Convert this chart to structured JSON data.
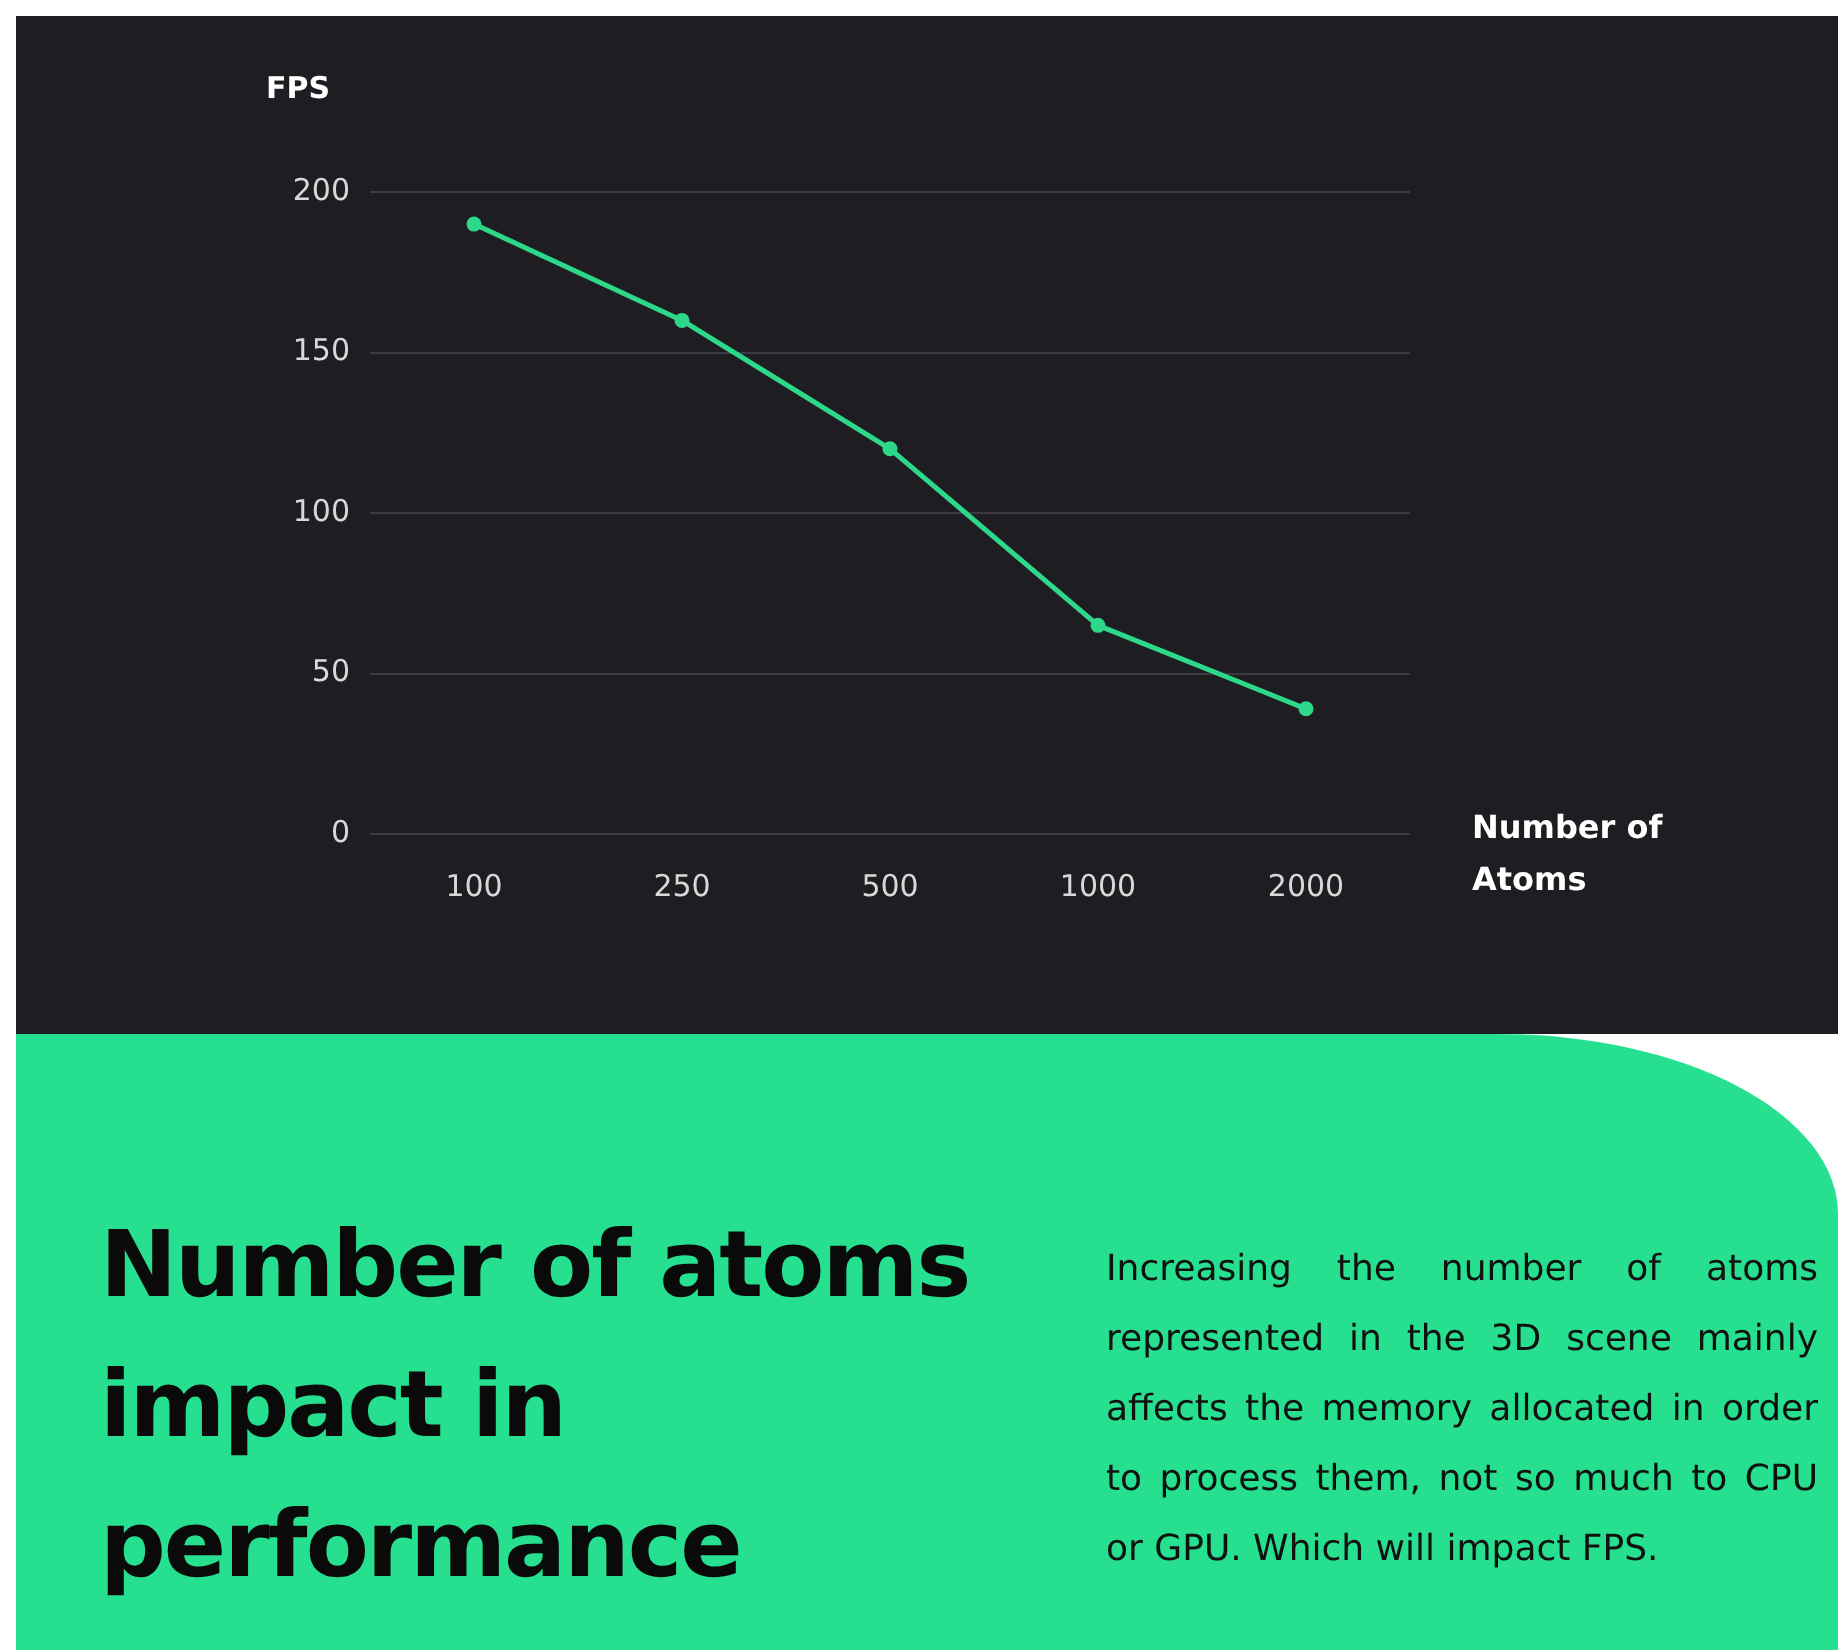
{
  "chart_data": {
    "type": "line",
    "title": "Number of atoms impact in performance",
    "xlabel": "Number of Atoms",
    "ylabel": "FPS",
    "annotations": [
      "Increasing the number of atoms represented in the 3D scene mainly affects the memory allocated in order to process them, not so much to CPU or GPU. Which will impact FPS."
    ],
    "categories": [
      "100",
      "250",
      "500",
      "1000",
      "2000"
    ],
    "series": [
      {
        "color": "#2ed88a",
        "values": [
          190,
          160,
          120,
          65,
          39
        ]
      }
    ],
    "ylim": [
      0,
      200
    ],
    "yticks": [
      0,
      50,
      100,
      150,
      200
    ],
    "grid": "y",
    "legend": false,
    "marker": "circle",
    "line_style": "solid"
  }
}
